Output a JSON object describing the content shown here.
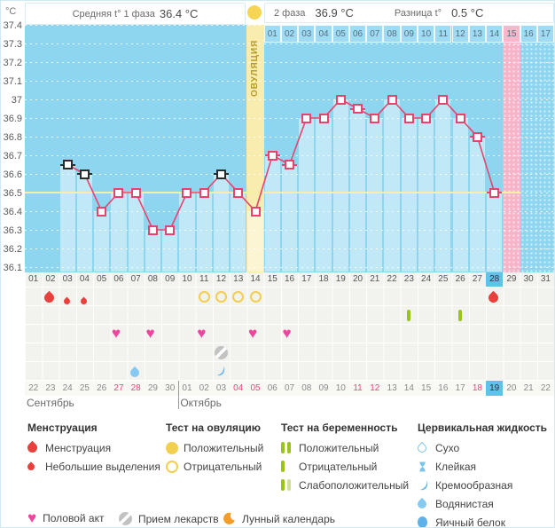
{
  "header": {
    "unit": "°C",
    "phase1_label": "Средняя t° 1 фаза",
    "phase1_value": "36.4 °C",
    "phase2_label": "2 фаза",
    "phase2_value": "36.9 °C",
    "diff_label": "Разница t°",
    "diff_value": "0.5 °C",
    "ovulation_band_label": "ОВУЛЯЦИЯ"
  },
  "chart_data": {
    "type": "line",
    "ylabel": "°C",
    "ylim": [
      36.1,
      37.4
    ],
    "ytick_step": 0.1,
    "yticks": [
      "37.4",
      "37.3",
      "37.2",
      "37.1",
      "37",
      "36.9",
      "36.8",
      "36.7",
      "36.6",
      "36.5",
      "36.4",
      "36.3",
      "36.2",
      "36.1"
    ],
    "coverline": 36.5,
    "x_days": [
      "01",
      "02",
      "03",
      "04",
      "05",
      "06",
      "07",
      "08",
      "09",
      "10",
      "11",
      "12",
      "13",
      "14",
      "15",
      "16",
      "17",
      "18",
      "19",
      "20",
      "21",
      "22",
      "23",
      "24",
      "25",
      "26",
      "27",
      "28",
      "29",
      "30",
      "31"
    ],
    "current_day": 28,
    "ovulation_day": 14,
    "expected_period_day": 29,
    "dpo_days": [
      "01",
      "02",
      "03",
      "04",
      "05",
      "06",
      "07",
      "08",
      "09",
      "10",
      "11",
      "12",
      "13",
      "14",
      "15",
      "16",
      "17"
    ],
    "dpo_highlight": "15",
    "moon_day": 17,
    "series": [
      {
        "name": "Базальная температура",
        "points": [
          {
            "day": 3,
            "temp": 36.65,
            "marker": "black",
            "dash": true
          },
          {
            "day": 4,
            "temp": 36.6,
            "marker": "black",
            "dash": true
          },
          {
            "day": 5,
            "temp": 36.4
          },
          {
            "day": 6,
            "temp": 36.5
          },
          {
            "day": 7,
            "temp": 36.5
          },
          {
            "day": 8,
            "temp": 36.3
          },
          {
            "day": 9,
            "temp": 36.3
          },
          {
            "day": 10,
            "temp": 36.5
          },
          {
            "day": 11,
            "temp": 36.5
          },
          {
            "day": 12,
            "temp": 36.6,
            "marker": "black",
            "dash": true
          },
          {
            "day": 13,
            "temp": 36.5
          },
          {
            "day": 14,
            "temp": 36.4
          },
          {
            "day": 15,
            "temp": 36.7,
            "dash": true
          },
          {
            "day": 16,
            "temp": 36.65,
            "dash": true
          },
          {
            "day": 17,
            "temp": 36.9
          },
          {
            "day": 18,
            "temp": 36.9
          },
          {
            "day": 19,
            "temp": 37.0
          },
          {
            "day": 20,
            "temp": 36.95,
            "dash": true
          },
          {
            "day": 21,
            "temp": 36.9
          },
          {
            "day": 22,
            "temp": 37.0
          },
          {
            "day": 23,
            "temp": 36.9
          },
          {
            "day": 24,
            "temp": 36.9
          },
          {
            "day": 25,
            "temp": 37.0
          },
          {
            "day": 26,
            "temp": 36.9
          },
          {
            "day": 27,
            "temp": 36.8,
            "dash": true
          },
          {
            "day": 28,
            "temp": 36.5,
            "dash": true
          }
        ]
      }
    ]
  },
  "events": {
    "menstruation": [
      {
        "day": 2,
        "size": "large"
      },
      {
        "day": 3,
        "size": "small"
      },
      {
        "day": 4,
        "size": "small"
      },
      {
        "day": 28,
        "size": "large"
      }
    ],
    "ovulation_tests": [
      {
        "day": 11,
        "result": "negative"
      },
      {
        "day": 12,
        "result": "negative"
      },
      {
        "day": 13,
        "result": "negative"
      },
      {
        "day": 14,
        "result": "negative"
      }
    ],
    "pregnancy_tests": [
      {
        "day": 23,
        "result": "negative"
      },
      {
        "day": 26,
        "result": "negative"
      }
    ],
    "intercourse_days": [
      6,
      8,
      11,
      14,
      16
    ],
    "medication_days": [
      12
    ],
    "cervical_fluid": [
      {
        "day": 7,
        "type": "watery"
      },
      {
        "day": 12,
        "type": "creamy"
      }
    ]
  },
  "calendar": {
    "months": [
      {
        "label": "Сентябрь",
        "days": [
          "22",
          "23",
          "24",
          "25",
          "26",
          "27",
          "28",
          "29",
          "30"
        ],
        "weekend": [
          "27",
          "28"
        ],
        "today": ""
      },
      {
        "label": "Октябрь",
        "days": [
          "01",
          "02",
          "03",
          "04",
          "05",
          "06",
          "07",
          "08",
          "09",
          "10",
          "11",
          "12",
          "13",
          "14",
          "15",
          "16",
          "17",
          "18",
          "19",
          "20",
          "21",
          "22"
        ],
        "weekend": [
          "04",
          "05",
          "11",
          "12",
          "18"
        ],
        "today": "19"
      }
    ]
  },
  "legend": {
    "groups": [
      {
        "title": "Менструация",
        "items": [
          {
            "icon": "drop-large",
            "label": "Менструация"
          },
          {
            "icon": "drop-small",
            "label": "Небольшие выделения"
          }
        ]
      },
      {
        "title": "Тест на овуляцию",
        "items": [
          {
            "icon": "circle-filled",
            "label": "Положительный"
          },
          {
            "icon": "circle-outline",
            "label": "Отрицательный"
          }
        ]
      },
      {
        "title": "Тест на беременность",
        "items": [
          {
            "icon": "bars-two",
            "label": "Положительный"
          },
          {
            "icon": "bar-one",
            "label": "Отрицательный"
          },
          {
            "icon": "bars-weak",
            "label": "Слабоположительный"
          }
        ]
      },
      {
        "title": "Цервикальная жидкость",
        "items": [
          {
            "icon": "drop-outline",
            "label": "Сухо"
          },
          {
            "icon": "hourglass",
            "label": "Клейкая"
          },
          {
            "icon": "comma",
            "label": "Кремообразная"
          },
          {
            "icon": "drop-watery",
            "label": "Водянистая"
          },
          {
            "icon": "drop-eggwhite",
            "label": "Яичный белок"
          }
        ]
      }
    ],
    "footer_items": [
      {
        "icon": "heart",
        "label": "Половой акт"
      },
      {
        "icon": "pill",
        "label": "Прием лекарств"
      },
      {
        "icon": "moon",
        "label": "Лунный календарь"
      }
    ]
  },
  "colors": {
    "line": "#e8436d",
    "black_marker": "#2b2b2b",
    "chart_bg": "#8ed5f0",
    "coverline": "#f6f0a5",
    "band_ovulation": "#f8edaf",
    "band_period": "#f7b3c7",
    "menstruation": "#e8403c",
    "heart": "#f0459c",
    "ovulation_test": "#f2cf4e",
    "pregnancy_test": "#9ac31c",
    "pregnancy_test_weak": "#cfe099",
    "cervical": "#85c9f2",
    "pill": "#c2c2c2",
    "moon": "#f59d28",
    "highlight": "#5ec2e9",
    "weekend": "#f0457c"
  }
}
